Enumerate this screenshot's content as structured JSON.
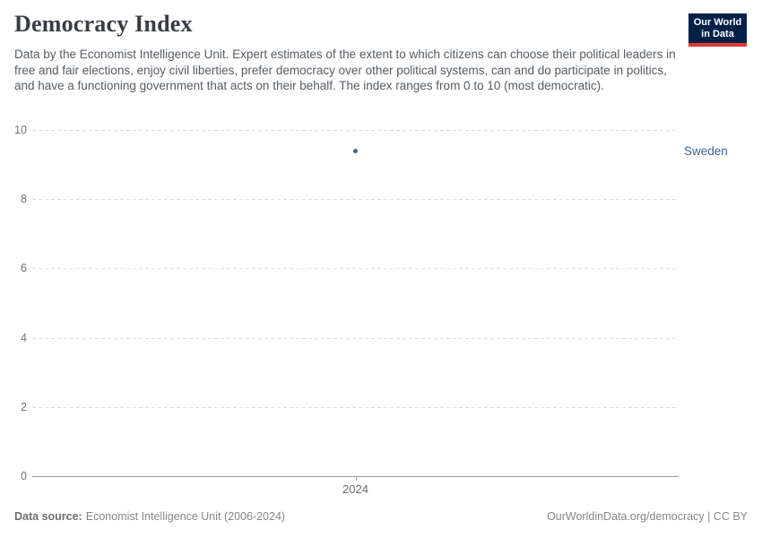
{
  "header": {
    "title": "Democracy Index",
    "subtitle": "Data by the Economist Intelligence Unit. Expert estimates of the extent to which citizens can choose their political leaders in free and fair elections, enjoy civil liberties, prefer democracy over other political systems, can and do participate in politics, and have a functioning government that acts on their behalf. The index ranges from 0 to 10 (most democratic).",
    "logo": {
      "line1": "Our World",
      "line2": "in Data",
      "bg_color": "#002147",
      "stripe_color": "#dc3b38"
    }
  },
  "chart_data": {
    "type": "scatter",
    "title": "Democracy Index",
    "x": [
      2024
    ],
    "series": [
      {
        "name": "Sweden",
        "values": [
          9.39
        ],
        "color": "#3d639d"
      }
    ],
    "xlabel": "",
    "ylabel": "",
    "ylim": [
      0,
      10
    ],
    "yticks": [
      0,
      2,
      4,
      6,
      8,
      10
    ],
    "xticks": [
      2024
    ],
    "grid": "horizontal-dashed",
    "gridline_color": "#dddddd",
    "axis_line_color": "#9b9b9b",
    "legend_position": "right-of-plot"
  },
  "footer": {
    "source_label": "Data source:",
    "source_text": "Economist Intelligence Unit (2006-2024)",
    "credit": "OurWorldinData.org/democracy | CC BY"
  }
}
